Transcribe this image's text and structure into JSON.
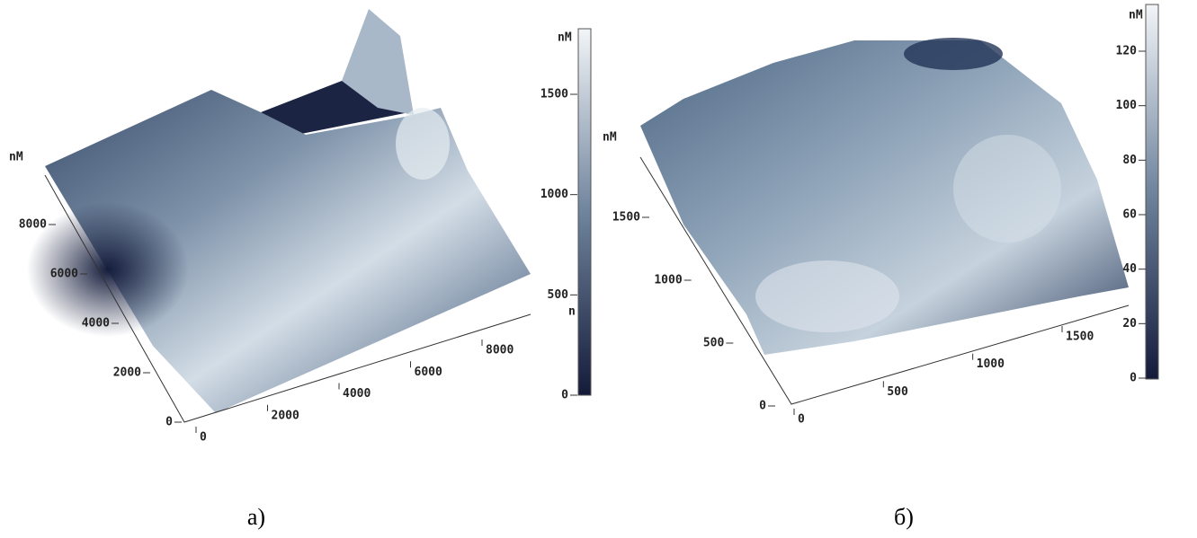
{
  "panels": [
    {
      "caption": "а)",
      "axis_unit": "nM",
      "y_ticks": [
        "0",
        "2000",
        "4000",
        "6000",
        "8000"
      ],
      "x_ticks": [
        "0",
        "2000",
        "4000",
        "6000",
        "8000"
      ],
      "colorbar": {
        "unit": "nM",
        "ticks": [
          "0",
          "500",
          "1000",
          "1500"
        ]
      },
      "fragment": "n"
    },
    {
      "caption": "б)",
      "axis_unit": "nM",
      "y_ticks": [
        "0",
        "500",
        "1000",
        "1500"
      ],
      "x_ticks": [
        "0",
        "500",
        "1000",
        "1500"
      ],
      "colorbar": {
        "unit": "nM",
        "ticks": [
          "0",
          "20",
          "40",
          "60",
          "80",
          "100",
          "120"
        ]
      }
    }
  ]
}
